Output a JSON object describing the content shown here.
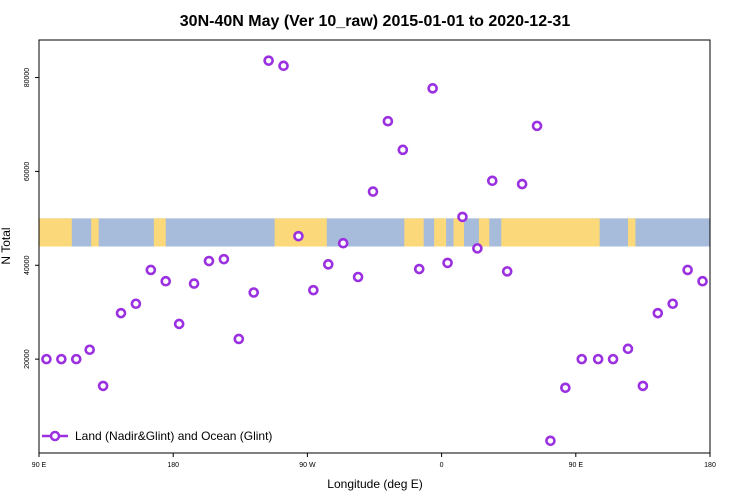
{
  "colors": {
    "point": "#9b30e0",
    "ocean": "#a7bbdb",
    "land": "#fbd97a",
    "axis": "#000000"
  },
  "chart_data": {
    "type": "scatter",
    "title": "30N-40N May (Ver 10_raw)   2015-01-01 to 2020-12-31",
    "xlabel": "Longitude (deg E)",
    "ylabel": "N Total",
    "xlim": [
      90,
      540
    ],
    "ylim": [
      0,
      88000
    ],
    "x_ticks": [
      {
        "value": 90,
        "label": "90 E"
      },
      {
        "value": 180,
        "label": "180"
      },
      {
        "value": 270,
        "label": "90 W"
      },
      {
        "value": 360,
        "label": "0"
      },
      {
        "value": 450,
        "label": "90 E"
      },
      {
        "value": 540,
        "label": "180"
      }
    ],
    "y_ticks": [
      {
        "value": 20000,
        "label": "20000"
      },
      {
        "value": 40000,
        "label": "40000"
      },
      {
        "value": 60000,
        "label": "60000"
      },
      {
        "value": 80000,
        "label": "80000"
      }
    ],
    "map_strip_range": [
      44000,
      50000
    ],
    "legend": {
      "label": "Land (Nadir&Glint) and Ocean (Glint)",
      "position": "bottom-left"
    },
    "series": [
      {
        "name": "Land (Nadir&Glint) and Ocean (Glint)",
        "x": [
          95,
          105,
          115,
          124,
          133,
          145,
          155,
          165,
          175,
          184,
          194,
          204,
          214,
          224,
          234,
          244,
          254,
          264,
          274,
          284,
          294,
          304,
          314,
          324,
          334,
          345,
          354,
          364,
          374,
          384,
          394,
          404,
          414,
          424,
          433,
          443,
          454,
          465,
          475,
          485,
          495,
          505,
          515,
          525,
          535
        ],
        "y": [
          20000,
          20000,
          20000,
          22000,
          14300,
          29800,
          31800,
          39000,
          36600,
          27500,
          36100,
          40900,
          41300,
          24300,
          34200,
          83600,
          82500,
          46200,
          34700,
          40200,
          44700,
          37500,
          55700,
          70700,
          64600,
          39200,
          77700,
          40500,
          50300,
          43600,
          58000,
          38700,
          57300,
          69700,
          2600,
          13900,
          20000,
          20000,
          20000,
          22200,
          14300,
          29800,
          31800,
          39000,
          36600
        ]
      }
    ]
  }
}
